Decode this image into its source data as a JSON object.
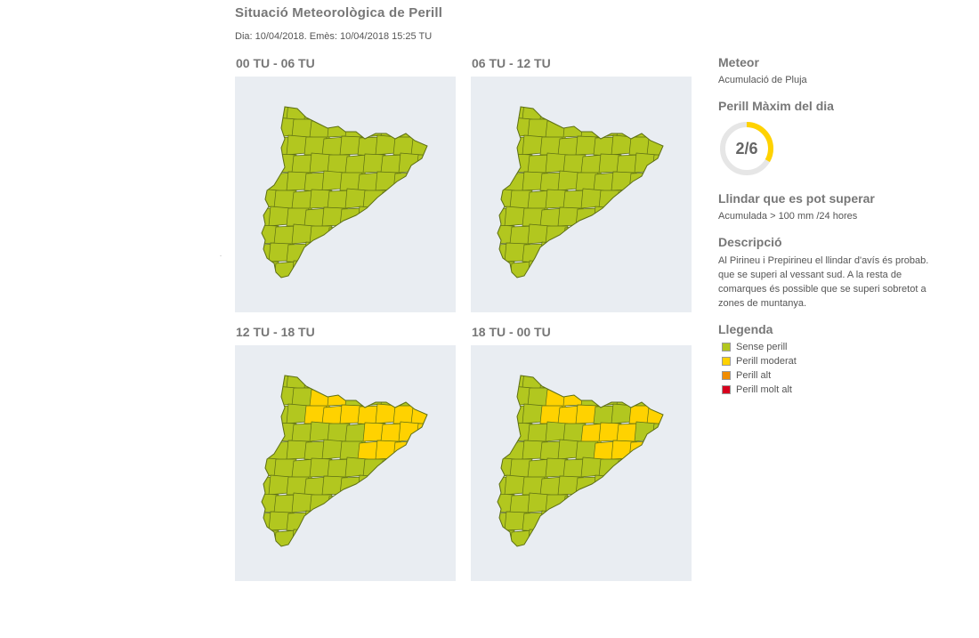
{
  "header": {
    "title": "Situació Meteorològica de Perill",
    "issued": "Dia: 10/04/2018. Emès: 10/04/2018 15:25 TU"
  },
  "maps": [
    {
      "label": "00 TU - 06 TU",
      "risk": "none"
    },
    {
      "label": "06 TU - 12 TU",
      "risk": "none"
    },
    {
      "label": "12 TU - 18 TU",
      "risk": "moderate-east"
    },
    {
      "label": "18 TU - 00 TU",
      "risk": "moderate-east"
    }
  ],
  "sidebar": {
    "meteor_heading": "Meteor",
    "meteor_value": "Acumulació de Pluja",
    "max_heading": "Perill Màxim del dia",
    "max_value": "2/6",
    "max_level": 2,
    "max_scale": 6,
    "threshold_heading": "Llindar que es pot superar",
    "threshold_value": "Acumulada > 100 mm /24 hores",
    "desc_heading": "Descripció",
    "desc_lines": [
      "Al Pirineu i Prepirineu el llindar d'avís és probab.",
      "que se superi al vessant sud. A la resta de",
      "comarques és possible que se superi sobretot a",
      "zones de muntanya."
    ],
    "legend_heading": "Llegenda",
    "legend": [
      {
        "label": "Sense perill",
        "color": "#b2c71f"
      },
      {
        "label": "Perill moderat",
        "color": "#ffd200"
      },
      {
        "label": "Perill alt",
        "color": "#f08c00"
      },
      {
        "label": "Perill molt alt",
        "color": "#d7001e"
      }
    ]
  },
  "colors": {
    "none": "#b2c71f",
    "moderate": "#ffd200",
    "border": "#5d6f14",
    "map_bg": "#e9edf2",
    "gauge_track": "#e6e6e6",
    "gauge_fill": "#ffd200"
  }
}
